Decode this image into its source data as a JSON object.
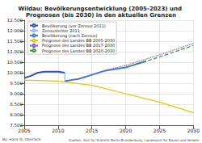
{
  "chart_data": {
    "type": "line",
    "title": "Wildau: Bevölkerungsentwicklung (2005-2023) und Prognosen (bis 2030) in den aktuellen Grenzen",
    "xlim": [
      2005,
      2030
    ],
    "xticks": [
      2005,
      2010,
      2015,
      2020,
      2025,
      2030
    ],
    "ylim": [
      7500,
      12500
    ],
    "yticks": [
      {
        "value": 7500,
        "label": "7.500"
      },
      {
        "value": 8000,
        "label": "8.000"
      },
      {
        "value": 8500,
        "label": "8.500"
      },
      {
        "value": 9000,
        "label": "9.000"
      },
      {
        "value": 9500,
        "label": "9.500"
      },
      {
        "value": 10000,
        "label": "10.000"
      },
      {
        "value": 10500,
        "label": "10.500"
      },
      {
        "value": 11000,
        "label": "11.000"
      },
      {
        "value": 11500,
        "label": "11.500"
      },
      {
        "value": 12000,
        "label": "12.000"
      },
      {
        "value": 12500,
        "label": "12.500"
      }
    ],
    "grid": true,
    "legend": "top-left",
    "series": [
      {
        "name": "Bevölkerung (vor Zensus 2011)",
        "color": "#2f4fbf",
        "line_style": "solid",
        "x": [
          2005,
          2006,
          2007,
          2008,
          2009,
          2010,
          2011
        ],
        "values": [
          9750,
          9850,
          10000,
          10050,
          10050,
          10050,
          10000
        ]
      },
      {
        "name": "Zensusfehler 2011",
        "color": "#9db8ea",
        "line_style": "solid",
        "x": [
          2011,
          2011
        ],
        "values": [
          10000,
          9600
        ]
      },
      {
        "name": "Bevölkerung (nach Zensus)",
        "color": "#4a78d8",
        "line_style": "solid",
        "x": [
          2011,
          2012,
          2013,
          2014,
          2015,
          2016,
          2017,
          2018,
          2019,
          2020,
          2021,
          2022,
          2023
        ],
        "values": [
          9600,
          9650,
          9700,
          9800,
          9900,
          10000,
          10100,
          10150,
          10200,
          10250,
          10350,
          10450,
          10550
        ]
      },
      {
        "name": "Prognose des Landes BB 2005-2030",
        "color": "#e8c400",
        "line_style": "solid",
        "x": [
          2005,
          2010,
          2015,
          2020,
          2025,
          2030
        ],
        "values": [
          9650,
          9600,
          9400,
          9000,
          8600,
          8100
        ]
      },
      {
        "name": "Prognose des Landes BB 2017-2030",
        "color": "#8a44c8",
        "line_style": "dotted",
        "x": [
          2017,
          2020,
          2025,
          2030
        ],
        "values": [
          10100,
          10350,
          10850,
          11400
        ]
      },
      {
        "name": "Prognose des Landes BB 2020-2030",
        "color": "#33a02c",
        "line_style": "dashed",
        "x": [
          2020,
          2025,
          2030
        ],
        "values": [
          10250,
          10750,
          11300
        ]
      }
    ],
    "annotations": [
      "By: Hans G. Oberlack",
      "Quellen: Amt für Statistik Berlin-Brandenburg, Landesamt für Bauen und Verkehr"
    ]
  }
}
